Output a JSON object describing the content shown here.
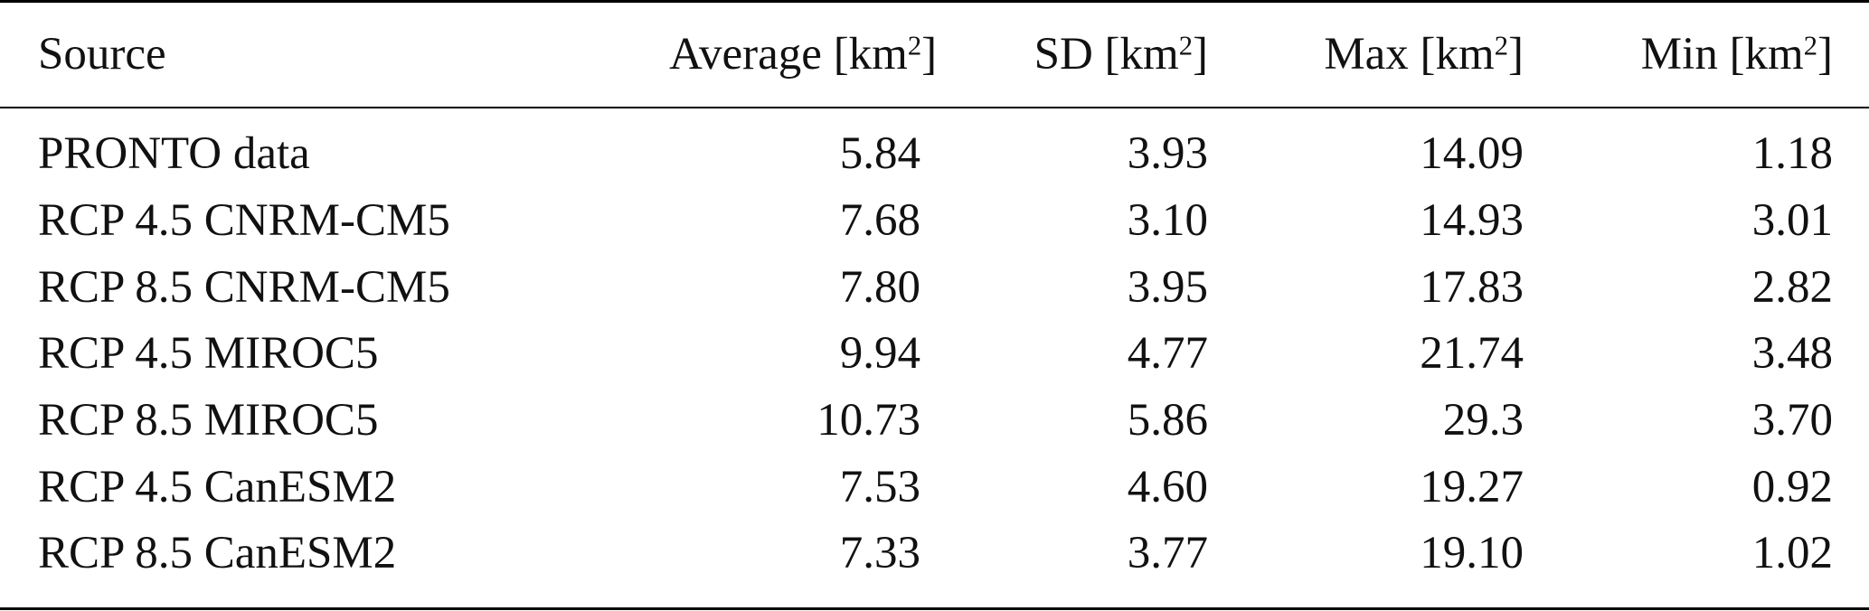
{
  "table": {
    "header": {
      "source": "Source",
      "average": "Average [km",
      "sd": "SD [km",
      "max": "Max [km",
      "min": "Min [km",
      "unit_exponent": "2",
      "unit_close": "]"
    },
    "rows": [
      {
        "source": "PRONTO data",
        "average": "5.84",
        "sd": "3.93",
        "max": "14.09",
        "min": "1.18"
      },
      {
        "source": "RCP 4.5 CNRM-CM5",
        "average": "7.68",
        "sd": "3.10",
        "max": "14.93",
        "min": "3.01"
      },
      {
        "source": "RCP 8.5 CNRM-CM5",
        "average": "7.80",
        "sd": "3.95",
        "max": "17.83",
        "min": "2.82"
      },
      {
        "source": "RCP 4.5 MIROC5",
        "average": "9.94",
        "sd": "4.77",
        "max": "21.74",
        "min": "3.48"
      },
      {
        "source": "RCP 8.5 MIROC5",
        "average": "10.73",
        "sd": "5.86",
        "max": "29.3",
        "min": "3.70"
      },
      {
        "source": "RCP 4.5 CanESM2",
        "average": "7.53",
        "sd": "4.60",
        "max": "19.27",
        "min": "0.92"
      },
      {
        "source": "RCP 8.5 CanESM2",
        "average": "7.33",
        "sd": "3.77",
        "max": "19.10",
        "min": "1.02"
      }
    ]
  }
}
